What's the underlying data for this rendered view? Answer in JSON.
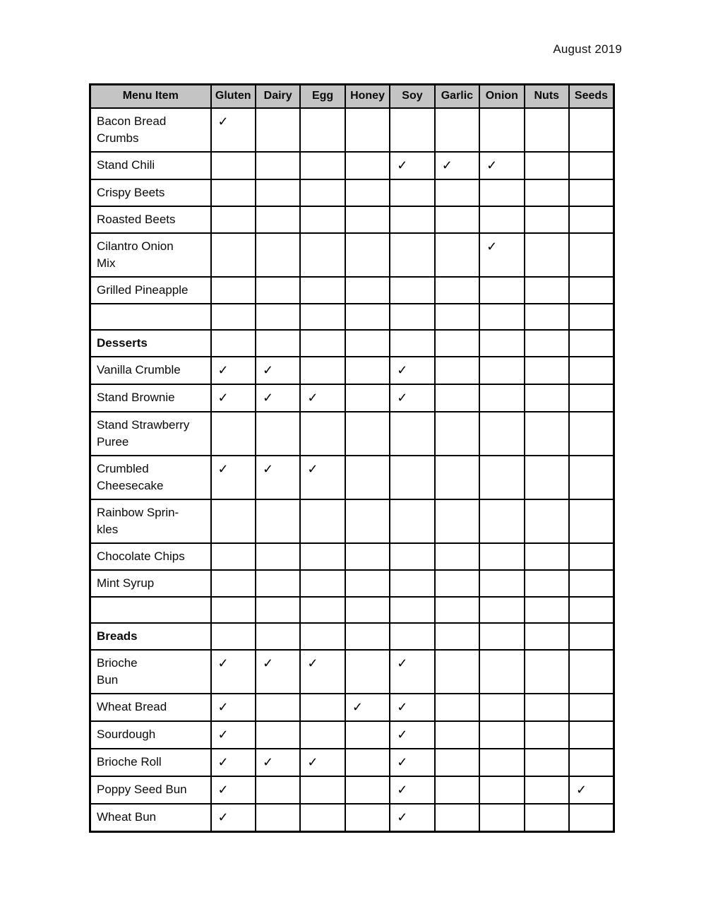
{
  "page": {
    "date_label": "August 2019"
  },
  "table": {
    "check_glyph": "✓",
    "header_bg": "#c4c4c4",
    "border_color": "#000000",
    "columns": [
      "Menu Item",
      "Gluten",
      "Dairy",
      "Egg",
      "Honey",
      "Soy",
      "Garlic",
      "Onion",
      "Nuts",
      "Seeds"
    ],
    "rows": [
      {
        "label": "Bacon Bread\nCrumbs",
        "type": "item",
        "checks": [
          "Gluten"
        ]
      },
      {
        "label": "Stand Chili",
        "type": "item",
        "checks": [
          "Soy",
          "Garlic",
          "Onion"
        ]
      },
      {
        "label": "Crispy Beets",
        "type": "item",
        "checks": []
      },
      {
        "label": "Roasted Beets",
        "type": "item",
        "checks": []
      },
      {
        "label": "Cilantro Onion\nMix",
        "type": "item",
        "checks": [
          "Onion"
        ]
      },
      {
        "label": "Grilled Pineapple",
        "type": "item",
        "checks": []
      },
      {
        "label": "",
        "type": "spacer",
        "checks": []
      },
      {
        "label": "Desserts",
        "type": "section",
        "checks": []
      },
      {
        "label": "Vanilla Crumble",
        "type": "item",
        "checks": [
          "Gluten",
          "Dairy",
          "Soy"
        ]
      },
      {
        "label": "Stand Brownie",
        "type": "item",
        "checks": [
          "Gluten",
          "Dairy",
          "Egg",
          "Soy"
        ]
      },
      {
        "label": "Stand Strawberry\nPuree",
        "type": "item",
        "checks": []
      },
      {
        "label": "Crumbled\nCheesecake",
        "type": "item",
        "checks": [
          "Gluten",
          "Dairy",
          "Egg"
        ]
      },
      {
        "label": "Rainbow Sprin-\nkles",
        "type": "item",
        "checks": []
      },
      {
        "label": "Chocolate Chips",
        "type": "item",
        "checks": []
      },
      {
        "label": "Mint Syrup",
        "type": "item",
        "checks": []
      },
      {
        "label": "",
        "type": "spacer",
        "checks": []
      },
      {
        "label": "Breads",
        "type": "section",
        "checks": []
      },
      {
        "label": "Brioche\nBun",
        "type": "item",
        "checks": [
          "Gluten",
          "Dairy",
          "Egg",
          "Soy"
        ]
      },
      {
        "label": "Wheat Bread",
        "type": "item",
        "checks": [
          "Gluten",
          "Honey",
          "Soy"
        ]
      },
      {
        "label": "Sourdough",
        "type": "item",
        "checks": [
          "Gluten",
          "Soy"
        ]
      },
      {
        "label": "Brioche Roll",
        "type": "item",
        "checks": [
          "Gluten",
          "Dairy",
          "Egg",
          "Soy"
        ]
      },
      {
        "label": "Poppy Seed Bun",
        "type": "item",
        "checks": [
          "Gluten",
          "Soy",
          "Seeds"
        ]
      },
      {
        "label": "Wheat Bun",
        "type": "item",
        "checks": [
          "Gluten",
          "Soy"
        ]
      }
    ]
  }
}
